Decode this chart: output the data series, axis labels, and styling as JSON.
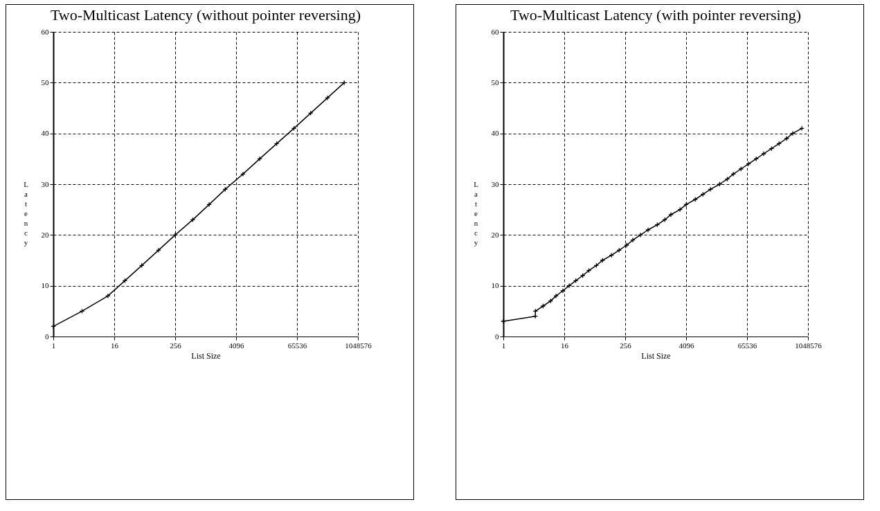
{
  "chart_data": [
    {
      "type": "line",
      "title": "Two-Multicast Latency (without pointer reversing)",
      "xlabel": "List Size",
      "ylabel": "Latency",
      "x": [
        1,
        3.7,
        12,
        26,
        56,
        120,
        256,
        570,
        1200,
        2500,
        5600,
        12000,
        26000,
        57000,
        122000,
        262000,
        561000
      ],
      "series": [
        {
          "color": "#000000",
          "values": [
            2,
            5,
            8,
            11,
            14,
            17,
            20,
            23,
            26,
            29,
            32,
            35,
            38,
            41,
            44,
            47,
            50
          ]
        }
      ],
      "xlim": [
        1,
        1048576
      ],
      "ylim": [
        0,
        60
      ],
      "xticks": [
        1,
        16,
        256,
        4096,
        65536,
        1048576
      ],
      "yticks": [
        0,
        10,
        20,
        30,
        40,
        50,
        60
      ],
      "log": "x",
      "grid": true,
      "marker": "cross",
      "line_style": "solid"
    },
    {
      "type": "line",
      "title": "Two-Multicast Latency (with pointer reversing)",
      "xlabel": "List Size",
      "ylabel": "Latency",
      "x": [
        1,
        4.3,
        4.3,
        6.1,
        8.6,
        11,
        15,
        20,
        27,
        37,
        49,
        69,
        91,
        137,
        194,
        274,
        362,
        512,
        724,
        1100,
        1550,
        2050,
        3100,
        4100,
        6200,
        8800,
        12400,
        18800,
        26600,
        35100,
        49700,
        70200,
        99300,
        140000,
        199000,
        281000,
        397000,
        524000,
        794000
      ],
      "series": [
        {
          "color": "#000000",
          "values": [
            3,
            4,
            5,
            6,
            7,
            8,
            9,
            10,
            11,
            12,
            13,
            14,
            15,
            16,
            17,
            18,
            19,
            20,
            21,
            22,
            23,
            24,
            25,
            26,
            27,
            28,
            29,
            30,
            31,
            32,
            33,
            34,
            35,
            36,
            37,
            38,
            39,
            40,
            41
          ]
        }
      ],
      "xlim": [
        1,
        1048576
      ],
      "ylim": [
        0,
        60
      ],
      "xticks": [
        1,
        16,
        256,
        4096,
        65536,
        1048576
      ],
      "yticks": [
        0,
        10,
        20,
        30,
        40,
        50,
        60
      ],
      "log": "x",
      "grid": true,
      "marker": "cross",
      "line_style": "solid"
    }
  ]
}
